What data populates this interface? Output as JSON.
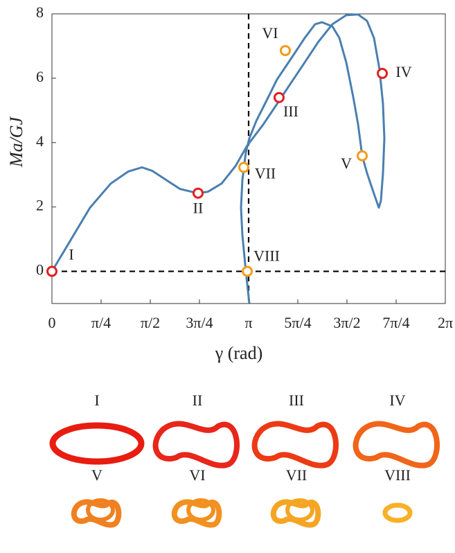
{
  "chart_data": {
    "type": "line",
    "xlabel": "γ (rad)",
    "ylabel": "Ma/GJ",
    "xlim": [
      0,
      6.2832
    ],
    "ylim": [
      -1,
      8
    ],
    "xticks": [
      {
        "value": 0,
        "label": "0"
      },
      {
        "value": 0.7854,
        "label": "π/4"
      },
      {
        "value": 1.5708,
        "label": "π/2"
      },
      {
        "value": 2.3562,
        "label": "3π/4"
      },
      {
        "value": 3.1416,
        "label": "π"
      },
      {
        "value": 3.927,
        "label": "5π/4"
      },
      {
        "value": 4.7124,
        "label": "3π/2"
      },
      {
        "value": 5.4978,
        "label": "7π/4"
      },
      {
        "value": 6.2832,
        "label": "2π"
      }
    ],
    "yticks": [
      0,
      2,
      4,
      6,
      8
    ],
    "reference_lines": {
      "x": 3.1416,
      "y": 0
    },
    "series": [
      {
        "color": "#4a7fb0",
        "x": [
          0,
          0.277,
          0.608,
          0.94,
          1.217,
          1.438,
          1.604,
          1.825,
          2.047,
          2.323,
          2.489,
          2.71,
          2.931,
          3.12,
          3.374,
          3.595,
          3.816,
          4.038,
          4.259,
          4.48,
          4.701,
          4.89,
          5.033,
          5.144,
          5.232,
          5.288,
          5.31,
          5.288,
          5.254,
          5.221,
          5.144,
          5.033,
          4.956,
          4.89,
          4.812,
          4.701,
          4.591,
          4.48,
          4.314,
          4.204,
          4.038,
          3.816,
          3.595,
          3.429,
          3.263,
          3.153,
          3.097,
          3.042,
          3.02,
          3.042,
          3.097,
          3.153
        ],
        "y": [
          0,
          0.9,
          1.98,
          2.73,
          3.1,
          3.23,
          3.12,
          2.84,
          2.56,
          2.43,
          2.47,
          2.73,
          3.27,
          3.91,
          4.56,
          5.2,
          5.85,
          6.49,
          7.14,
          7.68,
          7.96,
          7.98,
          7.78,
          7.25,
          6.28,
          5.2,
          4.13,
          3.05,
          2.19,
          1.98,
          2.41,
          3.05,
          3.59,
          4.56,
          5.42,
          6.49,
          7.25,
          7.61,
          7.74,
          7.68,
          7.25,
          6.6,
          5.96,
          5.31,
          4.67,
          4.13,
          3.7,
          2.84,
          1.98,
          1.12,
          0,
          -0.99
        ]
      }
    ],
    "markers": {
      "labels": [
        "I",
        "II",
        "III",
        "IV",
        "V",
        "VI",
        "VII",
        "VIII"
      ],
      "x": [
        0,
        2.334,
        3.628,
        5.277,
        4.956,
        3.728,
        3.064,
        3.12
      ],
      "y": [
        0,
        2.43,
        5.4,
        6.15,
        3.59,
        6.86,
        3.23,
        0
      ],
      "colors": [
        "#e02020",
        "#e02020",
        "#e02020",
        "#e02020",
        "#f29b1a",
        "#f29b1a",
        "#f29b1a",
        "#f29b1a"
      ]
    }
  }
}
